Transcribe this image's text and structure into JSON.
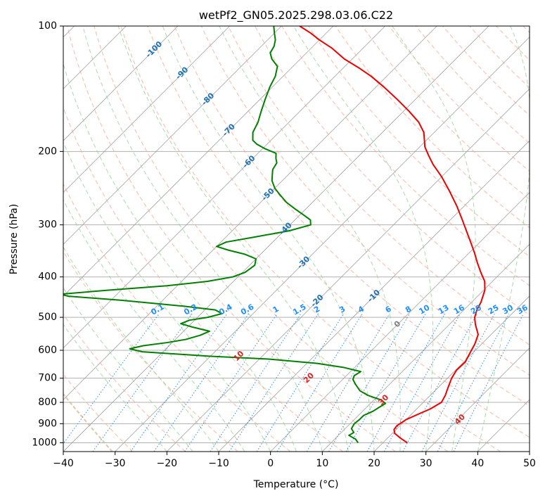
{
  "chart_data": {
    "type": "line",
    "title": "wetPf2_GN05.2025.298.03.06.C22",
    "xlabel": "Temperature (°C)",
    "ylabel": "Pressure (hPa)",
    "xlim": [
      -40,
      50
    ],
    "ylim": [
      1050,
      100
    ],
    "y_scale": "log",
    "grid": true,
    "x_ticks": [
      "−40",
      "−30",
      "−20",
      "−10",
      "0",
      "10",
      "20",
      "30",
      "40",
      "50"
    ],
    "y_ticks": [
      "100",
      "200",
      "300",
      "400",
      "500",
      "600",
      "700",
      "800",
      "900",
      "1000"
    ],
    "skew_deg": 45,
    "colors": {
      "temperature": "#ee0000",
      "dewpoint": "#008000",
      "isotherm": "#999999",
      "dry_adiabat": "#f4a38a",
      "moist_adiabat": "#8fcf8f",
      "mixing_ratio": "#2080e0",
      "isotherm_label": "#1f6fb4",
      "dry_adiabat_label": "#d62728",
      "freezing_label": "#7f7f7f",
      "mixing_ratio_label": "#1f8fff",
      "stability_curve": "#d2b48c"
    },
    "series": [
      {
        "key": "temperature",
        "points": [
          [
            1000,
            24.7
          ],
          [
            975,
            22.5
          ],
          [
            950,
            20.5
          ],
          [
            930,
            19.6
          ],
          [
            910,
            19.4
          ],
          [
            880,
            20.0
          ],
          [
            850,
            21.5
          ],
          [
            830,
            22.6
          ],
          [
            800,
            23.5
          ],
          [
            770,
            22.9
          ],
          [
            740,
            22.0
          ],
          [
            700,
            20.8
          ],
          [
            670,
            20.2
          ],
          [
            640,
            20.3
          ],
          [
            610,
            19.5
          ],
          [
            580,
            18.7
          ],
          [
            550,
            17.5
          ],
          [
            520,
            15.0
          ],
          [
            500,
            13.5
          ],
          [
            480,
            12.5
          ],
          [
            460,
            11.8
          ],
          [
            430,
            10.2
          ],
          [
            410,
            8.5
          ],
          [
            390,
            6.0
          ],
          [
            370,
            3.5
          ],
          [
            350,
            1.0
          ],
          [
            330,
            -1.8
          ],
          [
            310,
            -4.8
          ],
          [
            290,
            -8.0
          ],
          [
            270,
            -11.5
          ],
          [
            250,
            -15.5
          ],
          [
            230,
            -20.0
          ],
          [
            215,
            -24.0
          ],
          [
            205,
            -26.5
          ],
          [
            195,
            -29.0
          ],
          [
            180,
            -32.0
          ],
          [
            170,
            -35.0
          ],
          [
            160,
            -39.0
          ],
          [
            150,
            -43.5
          ],
          [
            140,
            -48.5
          ],
          [
            132,
            -53.0
          ],
          [
            126,
            -57.0
          ],
          [
            120,
            -61.5
          ],
          [
            113,
            -66.0
          ],
          [
            108,
            -70.0
          ],
          [
            104,
            -73.0
          ],
          [
            100,
            -76.5
          ]
        ]
      },
      {
        "key": "dewpoint",
        "points": [
          [
            1000,
            15.2
          ],
          [
            980,
            14.0
          ],
          [
            960,
            12.0
          ],
          [
            945,
            12.4
          ],
          [
            925,
            11.2
          ],
          [
            900,
            10.8
          ],
          [
            880,
            11.0
          ],
          [
            860,
            11.0
          ],
          [
            840,
            12.0
          ],
          [
            820,
            12.5
          ],
          [
            805,
            12.9
          ],
          [
            790,
            11.5
          ],
          [
            770,
            8.0
          ],
          [
            750,
            5.5
          ],
          [
            725,
            3.5
          ],
          [
            705,
            2.0
          ],
          [
            690,
            1.5
          ],
          [
            675,
            2.0
          ],
          [
            660,
            -2.0
          ],
          [
            645,
            -8.0
          ],
          [
            630,
            -18.0
          ],
          [
            620,
            -30.0
          ],
          [
            605,
            -44.0
          ],
          [
            595,
            -47.0
          ],
          [
            585,
            -45.0
          ],
          [
            575,
            -41.0
          ],
          [
            565,
            -38.0
          ],
          [
            552,
            -36.0
          ],
          [
            540,
            -35.0
          ],
          [
            528,
            -39.0
          ],
          [
            518,
            -42.0
          ],
          [
            508,
            -41.0
          ],
          [
            500,
            -38.0
          ],
          [
            490,
            -36.0
          ],
          [
            480,
            -38.0
          ],
          [
            470,
            -45.0
          ],
          [
            455,
            -58.0
          ],
          [
            445,
            -69.0
          ],
          [
            440,
            -71.0
          ],
          [
            430,
            -62.0
          ],
          [
            420,
            -52.0
          ],
          [
            410,
            -45.0
          ],
          [
            400,
            -41.0
          ],
          [
            390,
            -39.5
          ],
          [
            375,
            -39.0
          ],
          [
            362,
            -40.0
          ],
          [
            353,
            -43.0
          ],
          [
            345,
            -47.0
          ],
          [
            338,
            -50.0
          ],
          [
            330,
            -49.0
          ],
          [
            320,
            -44.0
          ],
          [
            310,
            -39.0
          ],
          [
            300,
            -36.0
          ],
          [
            292,
            -37.0
          ],
          [
            285,
            -39.0
          ],
          [
            275,
            -42.0
          ],
          [
            265,
            -45.0
          ],
          [
            255,
            -47.5
          ],
          [
            245,
            -50.0
          ],
          [
            235,
            -52.0
          ],
          [
            228,
            -53.0
          ],
          [
            221,
            -54.0
          ],
          [
            213,
            -54.5
          ],
          [
            208,
            -55.5
          ],
          [
            202,
            -56.5
          ],
          [
            197,
            -59.5
          ],
          [
            192,
            -62.0
          ],
          [
            188,
            -63.5
          ],
          [
            180,
            -65.0
          ],
          [
            170,
            -66.0
          ],
          [
            160,
            -67.5
          ],
          [
            150,
            -69.0
          ],
          [
            140,
            -70.5
          ],
          [
            132,
            -71.5
          ],
          [
            125,
            -73.0
          ],
          [
            120,
            -75.5
          ],
          [
            116,
            -77.0
          ],
          [
            112,
            -77.5
          ],
          [
            108,
            -78.5
          ],
          [
            104,
            -80.0
          ],
          [
            100,
            -81.5
          ]
        ]
      }
    ],
    "isotherm_labels": [
      "-100",
      "-90",
      "-80",
      "-70",
      "-60",
      "-50",
      "-40",
      "-30",
      "-20",
      "-10"
    ],
    "freezing_label": "0",
    "dry_adiabat_labels": [
      "10",
      "20",
      "30",
      "40"
    ],
    "mixing_ratio_labels": [
      "0.1",
      "0.2",
      "0.4",
      "0.6",
      "1",
      "1.5",
      "2",
      "3",
      "4",
      "6",
      "8",
      "10",
      "13",
      "16",
      "20",
      "25",
      "30",
      "36"
    ]
  }
}
